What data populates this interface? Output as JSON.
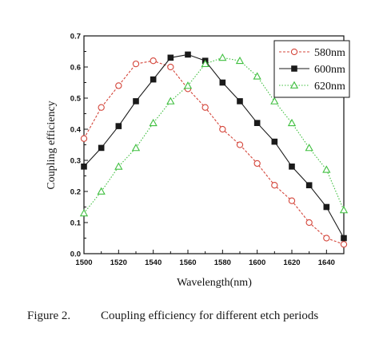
{
  "chart_data": {
    "type": "line",
    "xlabel": "Wavelength(nm)",
    "ylabel": "Coupling efficiency",
    "xlim": [
      1500,
      1650
    ],
    "ylim": [
      0.0,
      0.7
    ],
    "xticks": [
      1500,
      1520,
      1540,
      1560,
      1580,
      1600,
      1620,
      1640
    ],
    "yticks": [
      0.0,
      0.1,
      0.2,
      0.3,
      0.4,
      0.5,
      0.6,
      0.7
    ],
    "grid": false,
    "legend_position": "top-right",
    "series": [
      {
        "name": "580nm",
        "color": "#d4453a",
        "marker": "open-circle",
        "line": "dashed",
        "x": [
          1500,
          1510,
          1520,
          1530,
          1540,
          1550,
          1560,
          1570,
          1580,
          1590,
          1600,
          1610,
          1620,
          1630,
          1640,
          1650
        ],
        "y": [
          0.37,
          0.47,
          0.54,
          0.61,
          0.62,
          0.6,
          0.53,
          0.47,
          0.4,
          0.35,
          0.29,
          0.22,
          0.17,
          0.1,
          0.05,
          0.03
        ]
      },
      {
        "name": "600nm",
        "color": "#1a1a1a",
        "marker": "filled-square",
        "line": "solid",
        "x": [
          1500,
          1510,
          1520,
          1530,
          1540,
          1550,
          1560,
          1570,
          1580,
          1590,
          1600,
          1610,
          1620,
          1630,
          1640,
          1650
        ],
        "y": [
          0.28,
          0.34,
          0.41,
          0.49,
          0.56,
          0.63,
          0.64,
          0.62,
          0.55,
          0.49,
          0.42,
          0.36,
          0.28,
          0.22,
          0.15,
          0.05
        ]
      },
      {
        "name": "620nm",
        "color": "#3fbf3f",
        "marker": "open-triangle",
        "line": "dotted",
        "x": [
          1500,
          1510,
          1520,
          1530,
          1540,
          1550,
          1560,
          1570,
          1580,
          1590,
          1600,
          1610,
          1620,
          1630,
          1640,
          1650
        ],
        "y": [
          0.13,
          0.2,
          0.28,
          0.34,
          0.42,
          0.49,
          0.54,
          0.61,
          0.63,
          0.62,
          0.57,
          0.49,
          0.42,
          0.34,
          0.27,
          0.14
        ]
      }
    ]
  },
  "caption": {
    "label": "Figure 2.",
    "text": "Coupling efficiency for different etch periods"
  }
}
